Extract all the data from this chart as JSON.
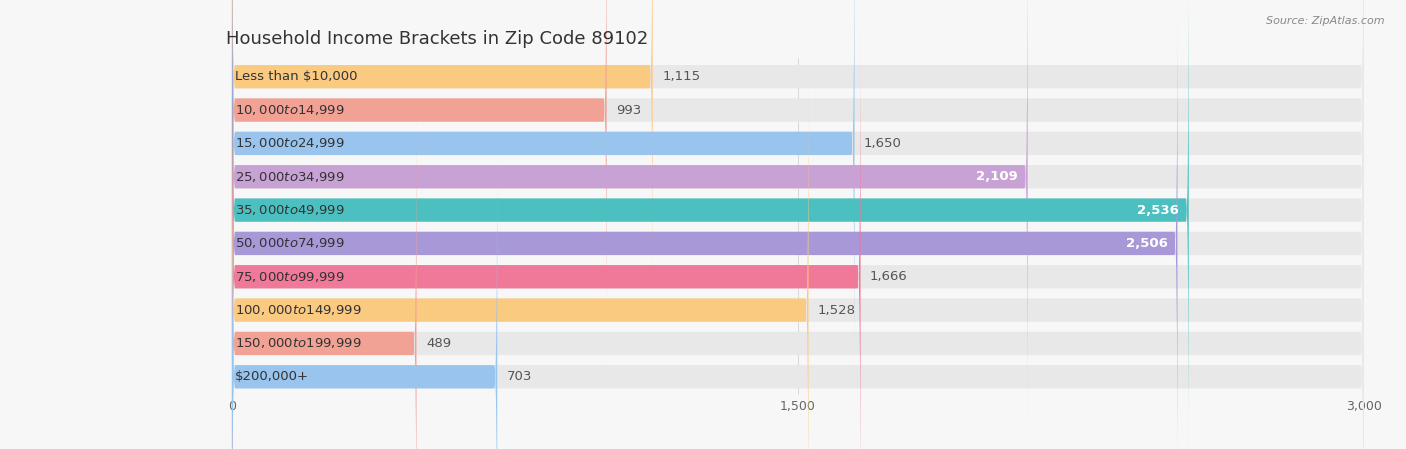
{
  "title": "Household Income Brackets in Zip Code 89102",
  "source": "Source: ZipAtlas.com",
  "categories": [
    "Less than $10,000",
    "$10,000 to $14,999",
    "$15,000 to $24,999",
    "$25,000 to $34,999",
    "$35,000 to $49,999",
    "$50,000 to $74,999",
    "$75,000 to $99,999",
    "$100,000 to $149,999",
    "$150,000 to $199,999",
    "$200,000+"
  ],
  "values": [
    1115,
    993,
    1650,
    2109,
    2536,
    2506,
    1666,
    1528,
    489,
    703
  ],
  "bar_colors": [
    "#FBCA81",
    "#F2A195",
    "#98C4EE",
    "#C8A2D4",
    "#4CBFC0",
    "#A898D8",
    "#F07898",
    "#FBCA81",
    "#F2A195",
    "#98C4EE"
  ],
  "xlim": [
    0,
    3000
  ],
  "xticks": [
    0,
    1500,
    3000
  ],
  "background_color": "#f7f7f7",
  "bar_bg_color": "#e8e8e8",
  "row_bg_color": "#f0f0f0",
  "title_fontsize": 13,
  "label_fontsize": 9.5,
  "value_fontsize": 9.5
}
